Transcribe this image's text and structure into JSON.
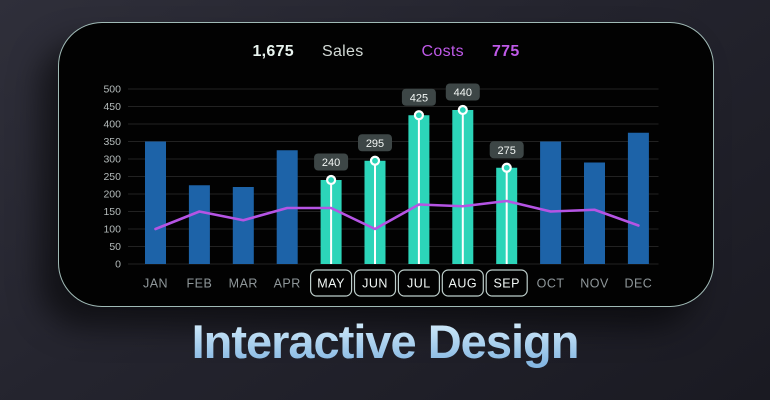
{
  "title": "Interactive Design",
  "header": {
    "sales_value": "1,675",
    "sales_label": "Sales",
    "costs_label": "Costs",
    "costs_value": "775"
  },
  "chart_data": {
    "type": "bar",
    "categories": [
      "JAN",
      "FEB",
      "MAR",
      "APR",
      "MAY",
      "JUN",
      "JUL",
      "AUG",
      "SEP",
      "OCT",
      "NOV",
      "DEC"
    ],
    "series": [
      {
        "name": "Sales",
        "type": "bar",
        "values": [
          350,
          225,
          220,
          325,
          240,
          295,
          425,
          440,
          275,
          350,
          290,
          375
        ]
      },
      {
        "name": "Costs",
        "type": "line",
        "values": [
          100,
          150,
          125,
          160,
          160,
          100,
          170,
          165,
          180,
          150,
          155,
          110
        ]
      }
    ],
    "highlighted_months": [
      "MAY",
      "JUN",
      "JUL",
      "AUG",
      "SEP"
    ],
    "data_labels": [
      "240",
      "295",
      "425",
      "440",
      "275"
    ],
    "ylim": [
      0,
      500
    ],
    "ytick_step": 50,
    "grid": true,
    "legend_position": "top",
    "colors": {
      "bar_default": "#1d63a8",
      "bar_highlight": "#2cd5b9",
      "line": "#b554e4",
      "marker_stroke": "#ffffff",
      "badge_bg": "#3d4646",
      "badge_text": "#f2f6f4",
      "axis_text": "#b4bbbb",
      "month_text": "#8f979a",
      "month_selected_text": "#f2f8f6",
      "chip_border": "rgba(222,242,238,0.85)",
      "grid_line": "rgba(255,255,255,0.13)",
      "costs_accent": "#bf5ae8"
    }
  }
}
